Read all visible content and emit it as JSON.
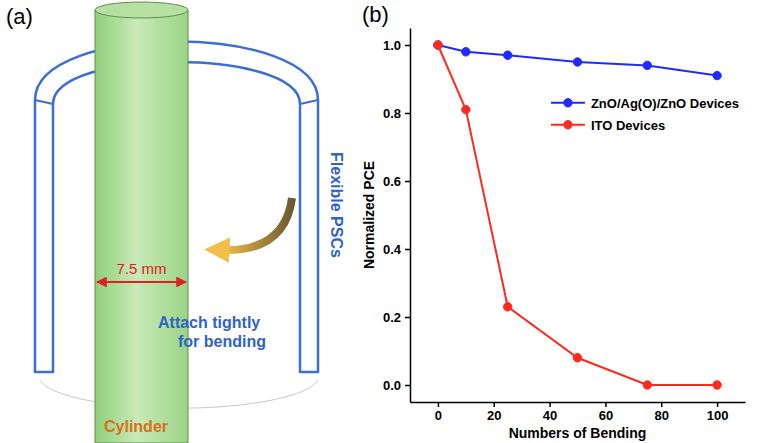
{
  "panel_labels": [
    "(a)",
    "(b)"
  ],
  "diagram": {
    "dimension": "7.5 mm",
    "device": "Flexible PSCs",
    "instruction": [
      "Attach tightly",
      "for bending"
    ],
    "object": "Cylinder"
  },
  "chart_data": {
    "type": "line",
    "x_label": "Numbers of Bending",
    "y_label": "Normalized PCE",
    "x": [
      0,
      10,
      25,
      50,
      75,
      100
    ],
    "series": [
      {
        "name": "ZnO/Ag(O)/ZnO Devices",
        "color": "#1f2bff",
        "marker": "circle",
        "values": [
          1.0,
          0.98,
          0.97,
          0.95,
          0.94,
          0.91
        ]
      },
      {
        "name": "ITO Devices",
        "color": "#ff2a1f",
        "marker": "circle",
        "values": [
          1.0,
          0.81,
          0.23,
          0.08,
          0.0,
          0.0
        ]
      }
    ],
    "xlim": [
      -10,
      110
    ],
    "xticks": [
      0,
      20,
      40,
      60,
      80,
      100
    ],
    "ylim": [
      -0.05,
      1.05
    ],
    "yticks": [
      {
        "value": 0,
        "label": "0.0"
      },
      0.2,
      0.4,
      0.6,
      0.8,
      {
        "value": 1,
        "label": "1.0"
      }
    ],
    "grid": false,
    "legend": "right"
  }
}
